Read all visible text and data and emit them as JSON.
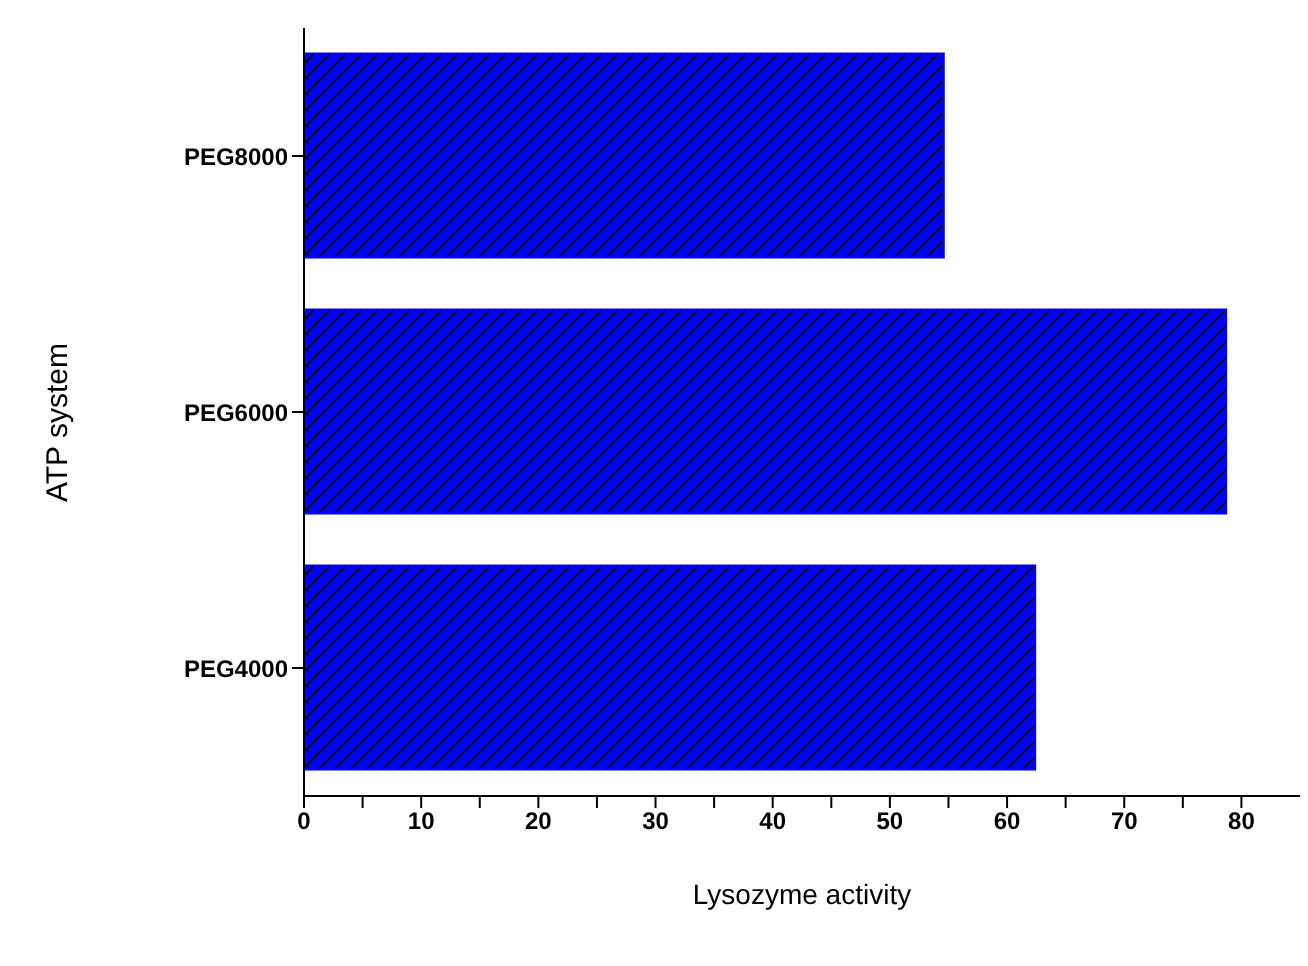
{
  "chart_data": {
    "type": "bar",
    "orientation": "horizontal",
    "xlabel": "Lysozyme activity",
    "ylabel": "ATP system",
    "categories": [
      "PEG8000",
      "PEG6000",
      "PEG4000"
    ],
    "values": [
      54.6,
      78.7,
      62.4
    ],
    "color": "#0000ff",
    "xlim": [
      0,
      85
    ],
    "xticks": [
      0,
      {
        "value": 5,
        "label": null
      },
      10,
      {
        "value": 15,
        "label": null
      },
      20,
      {
        "value": 25,
        "label": null
      },
      30,
      {
        "value": 35,
        "label": null
      },
      40,
      {
        "value": 45,
        "label": null
      },
      50,
      {
        "value": 55,
        "label": null
      },
      60,
      {
        "value": 65,
        "label": null
      },
      70,
      {
        "value": 75,
        "label": null
      },
      80
    ],
    "grid": false,
    "legend": false
  }
}
